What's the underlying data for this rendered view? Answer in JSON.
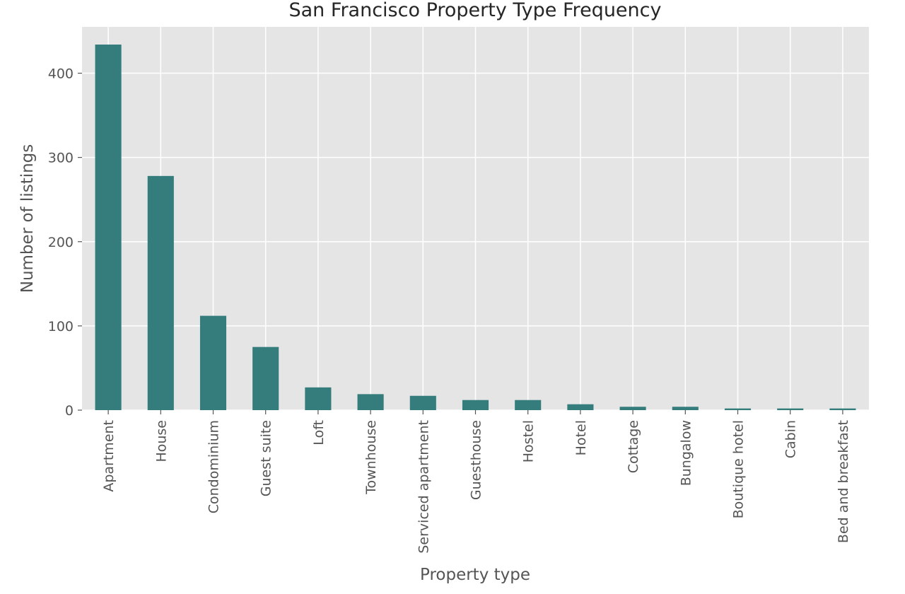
{
  "chart_data": {
    "type": "bar",
    "title": "San Francisco Property Type Frequency",
    "xlabel": "Property type",
    "ylabel": "Number of listings",
    "categories": [
      "Apartment",
      "House",
      "Condominium",
      "Guest suite",
      "Loft",
      "Townhouse",
      "Serviced apartment",
      "Guesthouse",
      "Hostel",
      "Hotel",
      "Cottage",
      "Bungalow",
      "Boutique hotel",
      "Cabin",
      "Bed and breakfast"
    ],
    "values": [
      434,
      278,
      112,
      75,
      27,
      19,
      17,
      12,
      12,
      7,
      4,
      4,
      2,
      2,
      2
    ],
    "ylim": [
      0,
      455
    ],
    "yticks": [
      0,
      100,
      200,
      300,
      400
    ],
    "grid": true,
    "legend": "none",
    "colors": {
      "bar": "#357d7c",
      "plot_background": "#e5e5e5",
      "grid": "#ffffff",
      "text": "#555555",
      "title": "#262626"
    }
  }
}
